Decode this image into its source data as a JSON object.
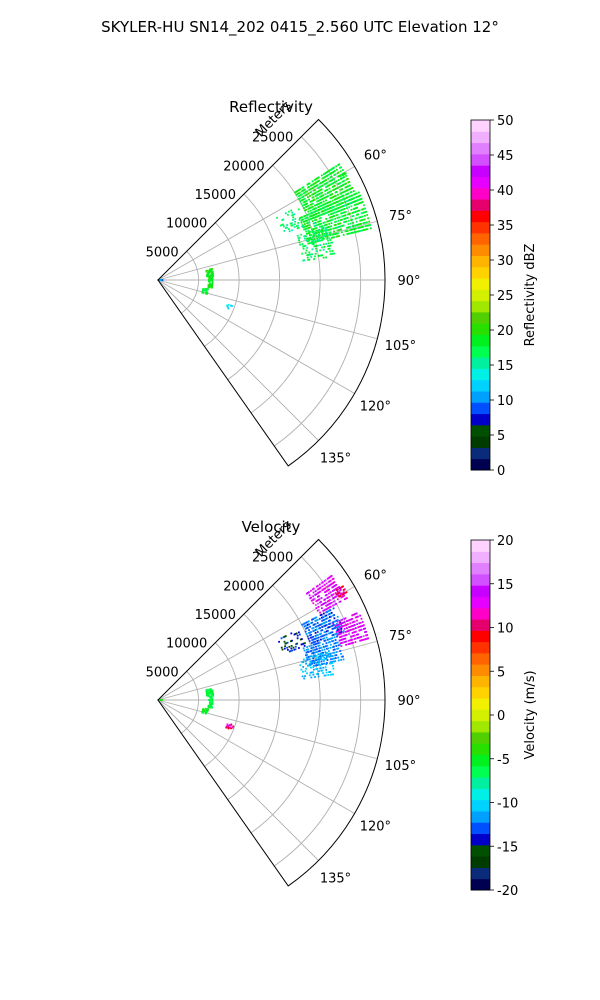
{
  "figure": {
    "title": "SKYLER-HU  SN14_202  0415_2.560 UTC Elevation 12°"
  },
  "chart_data": [
    {
      "type": "heatmap",
      "projection": "polar-sector",
      "title": "Reflectivity",
      "range_label": "Meters",
      "range_max": 28000,
      "azimuth_range": [
        45,
        145
      ],
      "range_ticks": [
        "5000",
        "10000",
        "15000",
        "20000",
        "25000"
      ],
      "range_tick_values": [
        5000,
        10000,
        15000,
        20000,
        25000
      ],
      "azimuth_ticks": [
        "60°",
        "75°",
        "90°",
        "105°",
        "120°",
        "135°"
      ],
      "azimuth_tick_values": [
        60,
        75,
        90,
        105,
        120,
        135
      ],
      "grid": true,
      "colorbar": {
        "label": "Reflectivity dBZ",
        "min": 0,
        "max": 50,
        "ticks": [
          "0",
          "5",
          "10",
          "15",
          "20",
          "25",
          "30",
          "35",
          "40",
          "45",
          "50"
        ],
        "tick_values": [
          0,
          5,
          10,
          15,
          20,
          25,
          30,
          35,
          40,
          45,
          50
        ],
        "colors": [
          "#000050",
          "#0a2a7a",
          "#003c00",
          "#005000",
          "#0000c8",
          "#0050ff",
          "#00a0ff",
          "#00d2ff",
          "#00f0e6",
          "#00f0a0",
          "#00ff50",
          "#00f020",
          "#28e000",
          "#50d000",
          "#a0e800",
          "#d2f000",
          "#f0f000",
          "#ffd200",
          "#ffb400",
          "#ff8c00",
          "#ff6400",
          "#ff3200",
          "#ff0000",
          "#e6006e",
          "#ff00c8",
          "#e600ff",
          "#c800ff",
          "#d250ff",
          "#e080ff",
          "#f0b0ff",
          "#ffd2ff"
        ]
      },
      "clusters": [
        {
          "az": [
            57,
            68
          ],
          "r": [
            20000,
            26500
          ],
          "values": [
            17,
            20
          ],
          "density": 0.75
        },
        {
          "az": [
            66,
            76
          ],
          "r": [
            19000,
            27000
          ],
          "values": [
            16,
            20
          ],
          "density": 0.7
        },
        {
          "az": [
            72,
            82
          ],
          "r": [
            18000,
            22000
          ],
          "values": [
            15,
            19
          ],
          "density": 0.35
        },
        {
          "az": [
            62,
            70
          ],
          "r": [
            16500,
            19500
          ],
          "values": [
            14,
            18
          ],
          "density": 0.25
        },
        {
          "az": [
            78,
            86
          ],
          "r": [
            6000,
            6800
          ],
          "values": [
            18,
            20
          ],
          "density": 0.6
        },
        {
          "az": [
            86,
            98
          ],
          "r": [
            6200,
            6700
          ],
          "values": [
            18,
            20
          ],
          "density": 0.6
        },
        {
          "az": [
            100,
            106
          ],
          "r": [
            5600,
            6300
          ],
          "values": [
            16,
            19
          ],
          "density": 0.5
        },
        {
          "az": [
            108,
            112
          ],
          "r": [
            9000,
            9800
          ],
          "values": [
            12,
            16
          ],
          "density": 0.3
        },
        {
          "az": [
            60,
            60.5
          ],
          "r": [
            25800,
            26700
          ],
          "values": [
            18,
            20
          ],
          "density": 0.9
        },
        {
          "az": [
            88,
            92
          ],
          "r": [
            0,
            600
          ],
          "values": [
            8,
            12
          ],
          "density": 0.6
        }
      ]
    },
    {
      "type": "heatmap",
      "projection": "polar-sector",
      "title": "Velocity",
      "range_label": "Meters",
      "range_max": 28000,
      "azimuth_range": [
        45,
        145
      ],
      "range_ticks": [
        "5000",
        "10000",
        "15000",
        "20000",
        "25000"
      ],
      "range_tick_values": [
        5000,
        10000,
        15000,
        20000,
        25000
      ],
      "azimuth_ticks": [
        "60°",
        "75°",
        "90°",
        "105°",
        "120°",
        "135°"
      ],
      "azimuth_tick_values": [
        60,
        75,
        90,
        105,
        120,
        135
      ],
      "grid": true,
      "colorbar": {
        "label": "Velocity (m/s)",
        "min": -20,
        "max": 20,
        "ticks": [
          "-20",
          "-15",
          "-10",
          "-5",
          "0",
          "5",
          "10",
          "15",
          "20"
        ],
        "tick_values": [
          -20,
          -15,
          -10,
          -5,
          0,
          5,
          10,
          15,
          20
        ],
        "colors": [
          "#000050",
          "#0a2a7a",
          "#003c00",
          "#005000",
          "#0000c8",
          "#0050ff",
          "#00a0ff",
          "#00d2ff",
          "#00f0e6",
          "#00f0a0",
          "#00ff50",
          "#00f020",
          "#28e000",
          "#50d000",
          "#a0e800",
          "#d2f000",
          "#f0f000",
          "#ffd200",
          "#ffb400",
          "#ff8c00",
          "#ff6400",
          "#ff3200",
          "#ff0000",
          "#e6006e",
          "#ff00c8",
          "#e600ff",
          "#c800ff",
          "#d250ff",
          "#e080ff",
          "#f0b0ff",
          "#ffd2ff"
        ]
      },
      "clusters": [
        {
          "az": [
            54,
            62
          ],
          "r": [
            22500,
            26500
          ],
          "values": [
            12,
            15
          ],
          "density": 0.65
        },
        {
          "az": [
            62,
            70
          ],
          "r": [
            20000,
            24500
          ],
          "values": [
            -14,
            -11
          ],
          "density": 0.65
        },
        {
          "az": [
            66,
            74
          ],
          "r": [
            23500,
            27000
          ],
          "values": [
            12,
            15
          ],
          "density": 0.7
        },
        {
          "az": [
            70,
            78
          ],
          "r": [
            19000,
            23500
          ],
          "values": [
            -13,
            -11
          ],
          "density": 0.6
        },
        {
          "az": [
            74,
            82
          ],
          "r": [
            18000,
            22000
          ],
          "values": [
            -12,
            -10
          ],
          "density": 0.35
        },
        {
          "az": [
            63,
            70
          ],
          "r": [
            16500,
            19500
          ],
          "values": [
            -16,
            -13
          ],
          "density": 0.25
        },
        {
          "az": [
            58,
            60
          ],
          "r": [
            25500,
            26800
          ],
          "values": [
            9,
            11
          ],
          "density": 0.8
        },
        {
          "az": [
            78,
            86
          ],
          "r": [
            6000,
            6800
          ],
          "values": [
            -7,
            -5
          ],
          "density": 0.6
        },
        {
          "az": [
            86,
            98
          ],
          "r": [
            6200,
            6700
          ],
          "values": [
            -7,
            -5
          ],
          "density": 0.6
        },
        {
          "az": [
            100,
            106
          ],
          "r": [
            5600,
            6300
          ],
          "values": [
            -6,
            -4
          ],
          "density": 0.5
        },
        {
          "az": [
            108,
            112
          ],
          "r": [
            9000,
            9800
          ],
          "values": [
            9,
            13
          ],
          "density": 0.3
        },
        {
          "az": [
            88,
            92
          ],
          "r": [
            0,
            600
          ],
          "values": [
            -6,
            -4
          ],
          "density": 0.6
        }
      ]
    }
  ]
}
